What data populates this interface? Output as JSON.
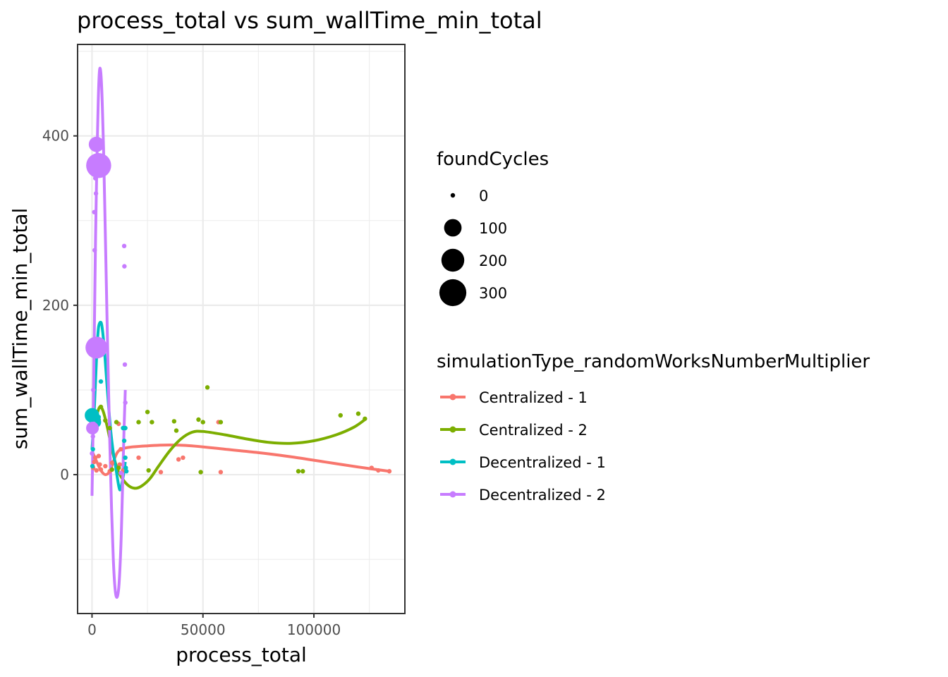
{
  "chart_data": {
    "type": "scatter",
    "title": "process_total  vs  sum_wallTime_min_total",
    "xlabel": "process_total",
    "ylabel": "sum_wallTime_min_total",
    "xlim": [
      -6500,
      141000
    ],
    "ylim": [
      -164,
      508
    ],
    "x_ticks": [
      0,
      50000,
      100000
    ],
    "x_tick_labels": [
      "0",
      "50000",
      "100000"
    ],
    "y_ticks": [
      0,
      200,
      400
    ],
    "y_tick_labels": [
      "0",
      "200",
      "400"
    ],
    "grid": true,
    "legend_position": "right",
    "size_legend": {
      "title": "foundCycles",
      "entries": [
        {
          "label": "0",
          "value": 0
        },
        {
          "label": "100",
          "value": 100
        },
        {
          "label": "200",
          "value": 200
        },
        {
          "label": "300",
          "value": 300
        }
      ]
    },
    "color_legend": {
      "title": "simulationType_randomWorksNumberMultiplier"
    },
    "series": [
      {
        "name": "Centralized - 1",
        "color": "#F8766D",
        "points": [
          [
            500,
            8,
            0
          ],
          [
            1000,
            15,
            0
          ],
          [
            1500,
            20,
            0
          ],
          [
            2000,
            5,
            0
          ],
          [
            3000,
            22,
            0
          ],
          [
            3500,
            12,
            0
          ],
          [
            4000,
            6,
            0
          ],
          [
            6000,
            10,
            0
          ],
          [
            8000,
            4,
            0
          ],
          [
            9000,
            14,
            0
          ],
          [
            12000,
            60,
            0
          ],
          [
            12500,
            12,
            0
          ],
          [
            13000,
            30,
            0
          ],
          [
            14000,
            5,
            0
          ],
          [
            21000,
            20,
            0
          ],
          [
            31000,
            3,
            0
          ],
          [
            39000,
            18,
            0
          ],
          [
            41000,
            20,
            0
          ],
          [
            57000,
            62,
            0
          ],
          [
            58000,
            3,
            0
          ],
          [
            126000,
            8,
            0
          ],
          [
            129000,
            5,
            0
          ],
          [
            134000,
            4,
            0
          ]
        ],
        "smooth": [
          [
            0,
            28
          ],
          [
            2000,
            16
          ],
          [
            4000,
            5
          ],
          [
            6000,
            0
          ],
          [
            8000,
            4
          ],
          [
            10000,
            18
          ],
          [
            12000,
            28
          ],
          [
            16000,
            32
          ],
          [
            25000,
            34
          ],
          [
            35000,
            35
          ],
          [
            45000,
            34
          ],
          [
            60000,
            30
          ],
          [
            75000,
            26
          ],
          [
            90000,
            21
          ],
          [
            105000,
            15
          ],
          [
            120000,
            9
          ],
          [
            134000,
            4
          ]
        ]
      },
      {
        "name": "Centralized - 2",
        "color": "#7CAE00",
        "points": [
          [
            2000,
            70,
            0
          ],
          [
            3000,
            65,
            0
          ],
          [
            4000,
            80,
            0
          ],
          [
            6000,
            64,
            0
          ],
          [
            8000,
            55,
            0
          ],
          [
            9000,
            6,
            0
          ],
          [
            11000,
            62,
            0
          ],
          [
            12000,
            8,
            0
          ],
          [
            21000,
            62,
            0
          ],
          [
            25000,
            74,
            0
          ],
          [
            25500,
            5,
            0
          ],
          [
            27000,
            62,
            0
          ],
          [
            37000,
            63,
            0
          ],
          [
            38000,
            52,
            0
          ],
          [
            48000,
            65,
            0
          ],
          [
            49000,
            3,
            0
          ],
          [
            50000,
            62,
            0
          ],
          [
            52000,
            103,
            0
          ],
          [
            58000,
            62,
            0
          ],
          [
            93000,
            4,
            0
          ],
          [
            95000,
            4,
            0
          ],
          [
            112000,
            70,
            0
          ],
          [
            120000,
            72,
            0
          ],
          [
            123000,
            66,
            0
          ]
        ],
        "smooth": [
          [
            0,
            60
          ],
          [
            2000,
            70
          ],
          [
            3500,
            80
          ],
          [
            5000,
            75
          ],
          [
            7000,
            55
          ],
          [
            9000,
            30
          ],
          [
            11000,
            10
          ],
          [
            13000,
            -2
          ],
          [
            16000,
            -12
          ],
          [
            19000,
            -16
          ],
          [
            22000,
            -14
          ],
          [
            26000,
            -5
          ],
          [
            30000,
            10
          ],
          [
            35000,
            28
          ],
          [
            40000,
            42
          ],
          [
            45000,
            50
          ],
          [
            50000,
            51
          ],
          [
            60000,
            47
          ],
          [
            70000,
            42
          ],
          [
            80000,
            38
          ],
          [
            90000,
            37
          ],
          [
            100000,
            40
          ],
          [
            110000,
            47
          ],
          [
            118000,
            56
          ],
          [
            123000,
            65
          ]
        ]
      },
      {
        "name": "Decentralized - 1",
        "color": "#00BFC4",
        "points": [
          [
            0,
            70,
            60
          ],
          [
            200,
            10,
            0
          ],
          [
            400,
            30,
            0
          ],
          [
            600,
            72,
            20
          ],
          [
            800,
            66,
            0
          ],
          [
            1000,
            75,
            0
          ],
          [
            1500,
            62,
            30
          ],
          [
            2000,
            150,
            0
          ],
          [
            3000,
            68,
            0
          ],
          [
            4000,
            110,
            0
          ],
          [
            14000,
            55,
            0
          ],
          [
            14500,
            40,
            0
          ],
          [
            15000,
            20,
            0
          ],
          [
            15200,
            8,
            0
          ],
          [
            15500,
            4,
            0
          ],
          [
            15000,
            55,
            0
          ]
        ],
        "smooth": [
          [
            0,
            30
          ],
          [
            500,
            50
          ],
          [
            1000,
            75
          ],
          [
            1500,
            105
          ],
          [
            2000,
            135
          ],
          [
            2500,
            160
          ],
          [
            3000,
            175
          ],
          [
            3800,
            180
          ],
          [
            4500,
            175
          ],
          [
            5500,
            150
          ],
          [
            6500,
            115
          ],
          [
            7500,
            80
          ],
          [
            8500,
            50
          ],
          [
            9500,
            28
          ],
          [
            10500,
            12
          ],
          [
            11500,
            -5
          ],
          [
            12500,
            -18
          ],
          [
            13500,
            -10
          ],
          [
            14500,
            5
          ],
          [
            15000,
            15
          ]
        ]
      },
      {
        "name": "Decentralized - 2",
        "color": "#C77CFF",
        "points": [
          [
            0,
            25,
            0
          ],
          [
            200,
            55,
            40
          ],
          [
            400,
            45,
            0
          ],
          [
            600,
            100,
            0
          ],
          [
            800,
            60,
            0
          ],
          [
            1000,
            310,
            0
          ],
          [
            1200,
            265,
            0
          ],
          [
            1500,
            350,
            0
          ],
          [
            1800,
            332,
            0
          ],
          [
            2000,
            390,
            70
          ],
          [
            3000,
            365,
            250
          ],
          [
            3500,
            150,
            0
          ],
          [
            14500,
            270,
            0
          ],
          [
            14600,
            246,
            0
          ],
          [
            14800,
            130,
            0
          ],
          [
            15000,
            85,
            0
          ],
          [
            13000,
            2,
            0
          ],
          [
            2000,
            150,
            180
          ]
        ],
        "smooth": [
          [
            0,
            -25
          ],
          [
            400,
            40
          ],
          [
            800,
            120
          ],
          [
            1200,
            200
          ],
          [
            1600,
            280
          ],
          [
            2000,
            340
          ],
          [
            2400,
            395
          ],
          [
            2800,
            440
          ],
          [
            3200,
            470
          ],
          [
            3600,
            480
          ],
          [
            4100,
            470
          ],
          [
            4600,
            440
          ],
          [
            5200,
            385
          ],
          [
            5800,
            310
          ],
          [
            6500,
            220
          ],
          [
            7200,
            130
          ],
          [
            8000,
            40
          ],
          [
            8800,
            -40
          ],
          [
            9600,
            -100
          ],
          [
            10400,
            -135
          ],
          [
            11200,
            -145
          ],
          [
            12000,
            -135
          ],
          [
            12600,
            -110
          ],
          [
            13200,
            -70
          ],
          [
            13800,
            -10
          ],
          [
            14400,
            50
          ],
          [
            15000,
            100
          ]
        ]
      }
    ]
  }
}
